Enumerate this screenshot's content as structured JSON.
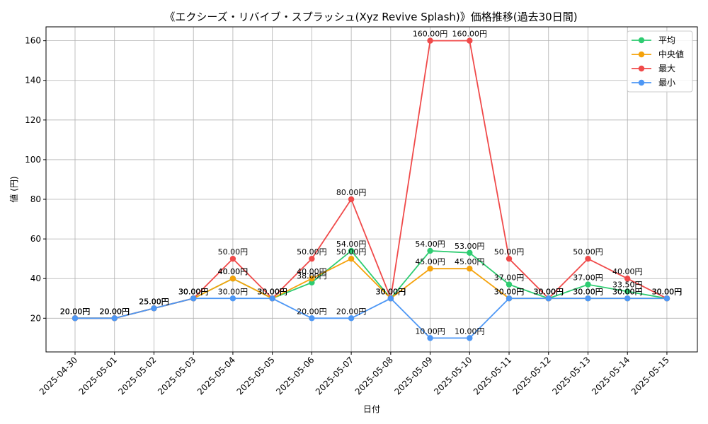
{
  "chart_data": {
    "type": "line",
    "title": "《エクシーズ・リバイブ・スプラッシュ(Xyz Revive Splash)》価格推移(過去30日間)",
    "xlabel": "日付",
    "ylabel": "値 (円)",
    "ylim": [
      3,
      167
    ],
    "yticks": [
      20,
      40,
      60,
      80,
      100,
      120,
      140,
      160
    ],
    "grid": true,
    "legend_position": "top-right",
    "label_suffix": "円",
    "categories": [
      "2025-04-30",
      "2025-05-01",
      "2025-05-02",
      "2025-05-03",
      "2025-05-04",
      "2025-05-05",
      "2025-05-06",
      "2025-05-07",
      "2025-05-08",
      "2025-05-09",
      "2025-05-10",
      "2025-05-11",
      "2025-05-12",
      "2025-05-13",
      "2025-05-14",
      "2025-05-15"
    ],
    "series": [
      {
        "name": "平均",
        "color": "#2ecc71",
        "values": [
          20,
          20,
          25,
          30,
          40,
          30,
          38,
          54,
          30,
          54,
          53,
          37,
          30,
          37,
          33.5,
          30
        ]
      },
      {
        "name": "中央値",
        "color": "#f5a20a",
        "values": [
          20,
          20,
          25,
          30,
          40,
          30,
          40,
          50,
          30,
          45,
          45,
          30,
          30,
          30,
          30,
          30
        ]
      },
      {
        "name": "最大",
        "color": "#f04a4a",
        "values": [
          20,
          20,
          25,
          30,
          50,
          30,
          50,
          80,
          30,
          160,
          160,
          50,
          30,
          50,
          40,
          30
        ]
      },
      {
        "name": "最小",
        "color": "#4d97f5",
        "values": [
          20,
          20,
          25,
          30,
          30,
          30,
          20,
          20,
          30,
          10,
          10,
          30,
          30,
          30,
          30,
          30
        ]
      }
    ]
  }
}
